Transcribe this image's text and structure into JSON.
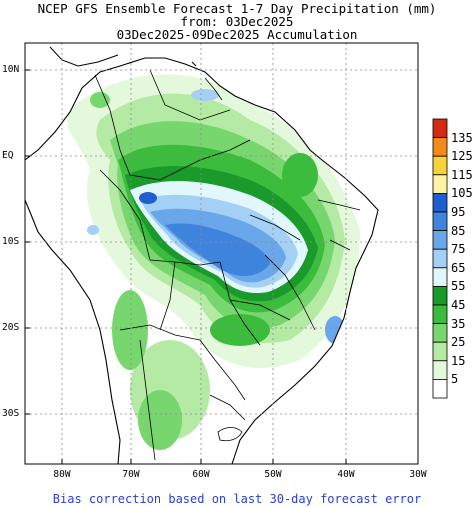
{
  "title": {
    "line1": "NCEP GFS Ensemble Forecast 1-7 Day Precipitation (mm)",
    "line2": "from: 03Dec2025",
    "line3": "03Dec2025-09Dec2025 Accumulation"
  },
  "footer": "Bias correction based on last 30-day forecast error",
  "lat_ticks": [
    {
      "value": 10,
      "label": "10N"
    },
    {
      "value": 0,
      "label": "EQ"
    },
    {
      "value": -10,
      "label": "10S"
    },
    {
      "value": -20,
      "label": "20S"
    },
    {
      "value": -30,
      "label": "30S"
    }
  ],
  "lon_ticks": [
    {
      "value": -80,
      "label": "80W"
    },
    {
      "value": -70,
      "label": "70W"
    },
    {
      "value": -60,
      "label": "60W"
    },
    {
      "value": -50,
      "label": "50W"
    },
    {
      "value": -40,
      "label": "40W"
    },
    {
      "value": -30,
      "label": "30W"
    }
  ],
  "colorbar": [
    {
      "label": "135",
      "color": "#d42a12"
    },
    {
      "label": "125",
      "color": "#f48a1a"
    },
    {
      "label": "115",
      "color": "#f8d23a"
    },
    {
      "label": "105",
      "color": "#fdf3a2"
    },
    {
      "label": "95",
      "color": "#1f5fcb"
    },
    {
      "label": "85",
      "color": "#3e84dc"
    },
    {
      "label": "75",
      "color": "#6aa7ea"
    },
    {
      "label": "65",
      "color": "#a4d0f5"
    },
    {
      "label": "55",
      "color": "#e2f7fb"
    },
    {
      "label": "45",
      "color": "#1a9a2a"
    },
    {
      "label": "35",
      "color": "#3cbc3c"
    },
    {
      "label": "25",
      "color": "#78d66e"
    },
    {
      "label": "15",
      "color": "#b4eaa4"
    },
    {
      "label": "5",
      "color": "#e4f8dc"
    },
    {
      "label": "",
      "color": "#ffffff"
    }
  ]
}
